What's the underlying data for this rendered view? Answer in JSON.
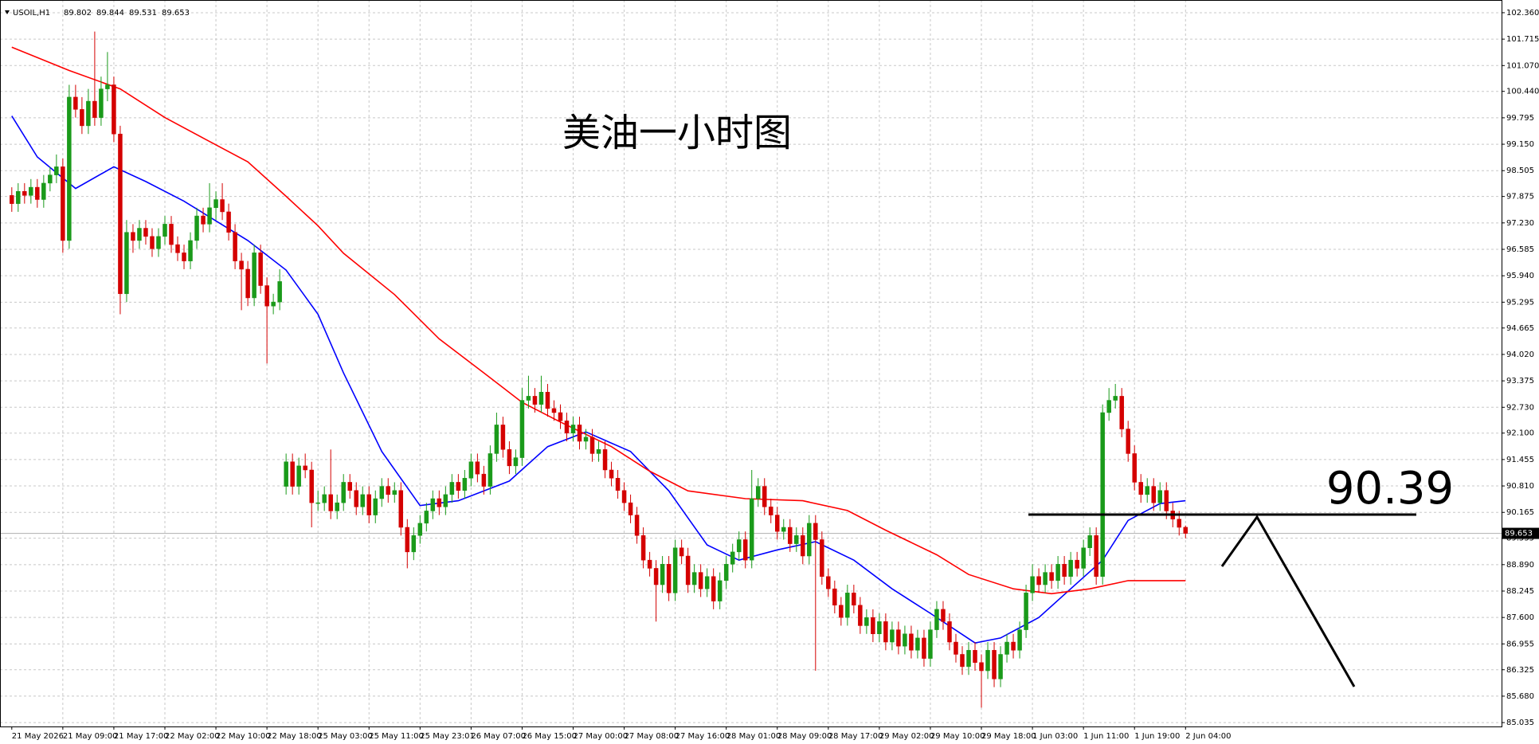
{
  "chart_data": {
    "type": "candlestick",
    "symbol": "USOIL,H1",
    "title": "美油一小时图",
    "annotations": [
      {
        "text": "90.39"
      }
    ],
    "up_color": "#1a9a1a",
    "down_color": "#d40000",
    "grid": true,
    "ylim": [
      84.94,
      102.67
    ],
    "yticks": [
      {
        "value": 102.36,
        "label": "102.360"
      },
      {
        "value": 101.715,
        "label": "101.715"
      },
      {
        "value": 101.07,
        "label": "101.070"
      },
      {
        "value": 100.44,
        "label": "100.440"
      },
      {
        "value": 99.795,
        "label": "99.795"
      },
      {
        "value": 99.15,
        "label": "99.150"
      },
      {
        "value": 98.505,
        "label": "98.505"
      },
      {
        "value": 97.875,
        "label": "97.875"
      },
      {
        "value": 97.23,
        "label": "97.230"
      },
      {
        "value": 96.585,
        "label": "96.585"
      },
      {
        "value": 95.94,
        "label": "95.940"
      },
      {
        "value": 95.295,
        "label": "95.295"
      },
      {
        "value": 94.665,
        "label": "94.665"
      },
      {
        "value": 94.02,
        "label": "94.020"
      },
      {
        "value": 93.375,
        "label": "93.375"
      },
      {
        "value": 92.73,
        "label": "92.730"
      },
      {
        "value": 92.1,
        "label": "92.100"
      },
      {
        "value": 91.455,
        "label": "91.455"
      },
      {
        "value": 90.81,
        "label": "90.810"
      },
      {
        "value": 90.165,
        "label": "90.165"
      },
      {
        "value": 89.535,
        "label": "89.535"
      },
      {
        "value": 88.89,
        "label": "88.890"
      },
      {
        "value": 88.245,
        "label": "88.245"
      },
      {
        "value": 87.6,
        "label": "87.600"
      },
      {
        "value": 86.955,
        "label": "86.955"
      },
      {
        "value": 86.325,
        "label": "86.325"
      },
      {
        "value": 85.68,
        "label": "85.680"
      },
      {
        "value": 85.035,
        "label": "85.035"
      }
    ],
    "xticks": [
      {
        "value": 0,
        "label": "21 May 2026"
      },
      {
        "value": 8,
        "label": "21 May 09:00"
      },
      {
        "value": 16,
        "label": "21 May 17:00"
      },
      {
        "value": 24,
        "label": "22 May 02:00"
      },
      {
        "value": 32,
        "label": "22 May 10:00"
      },
      {
        "value": 40,
        "label": "22 May 18:00"
      },
      {
        "value": 48,
        "label": "25 May 03:00"
      },
      {
        "value": 56,
        "label": "25 May 11:00"
      },
      {
        "value": 64,
        "label": "25 May 23:01"
      },
      {
        "value": 72,
        "label": "26 May 07:00"
      },
      {
        "value": 80,
        "label": "26 May 15:00"
      },
      {
        "value": 88,
        "label": "27 May 00:00"
      },
      {
        "value": 96,
        "label": "27 May 08:00"
      },
      {
        "value": 104,
        "label": "27 May 16:00"
      },
      {
        "value": 112,
        "label": "28 May 01:00"
      },
      {
        "value": 120,
        "label": "28 May 09:00"
      },
      {
        "value": 128,
        "label": "28 May 17:00"
      },
      {
        "value": 136,
        "label": "29 May 02:00"
      },
      {
        "value": 144,
        "label": "29 May 10:00"
      },
      {
        "value": 152,
        "label": "29 May 18:00"
      },
      {
        "value": 160,
        "label": "1 Jun 03:00"
      },
      {
        "value": 168,
        "label": "1 Jun 11:00"
      },
      {
        "value": 176,
        "label": "1 Jun 19:00"
      },
      {
        "value": 184,
        "label": "2 Jun 04:00"
      }
    ],
    "candles": [
      [
        97.9,
        98.1,
        97.5,
        97.7
      ],
      [
        97.7,
        98.2,
        97.5,
        98.0
      ],
      [
        98.0,
        98.2,
        97.7,
        97.9
      ],
      [
        97.9,
        98.3,
        97.7,
        98.1
      ],
      [
        98.1,
        98.3,
        97.6,
        97.8
      ],
      [
        97.8,
        98.4,
        97.6,
        98.2
      ],
      [
        98.2,
        98.6,
        98.0,
        98.4
      ],
      [
        98.4,
        98.9,
        98.2,
        98.6
      ],
      [
        98.6,
        98.8,
        96.5,
        96.8
      ],
      [
        96.8,
        100.6,
        96.6,
        100.3
      ],
      [
        100.3,
        100.6,
        99.8,
        100.0
      ],
      [
        100.0,
        100.3,
        99.4,
        99.6
      ],
      [
        99.6,
        100.5,
        99.4,
        100.2
      ],
      [
        100.2,
        101.9,
        99.6,
        99.8
      ],
      [
        99.8,
        100.8,
        99.6,
        100.5
      ],
      [
        100.5,
        101.4,
        100.2,
        100.6
      ],
      [
        100.6,
        100.8,
        99.2,
        99.4
      ],
      [
        99.4,
        99.6,
        95.0,
        95.5
      ],
      [
        95.5,
        97.3,
        95.3,
        97.0
      ],
      [
        97.0,
        97.2,
        96.5,
        96.8
      ],
      [
        96.8,
        97.3,
        96.6,
        97.1
      ],
      [
        97.1,
        97.3,
        96.7,
        96.9
      ],
      [
        96.9,
        97.1,
        96.4,
        96.6
      ],
      [
        96.6,
        97.1,
        96.4,
        96.9
      ],
      [
        96.9,
        97.4,
        96.7,
        97.2
      ],
      [
        97.2,
        97.4,
        96.5,
        96.7
      ],
      [
        96.7,
        96.9,
        96.3,
        96.5
      ],
      [
        96.5,
        96.7,
        96.1,
        96.3
      ],
      [
        96.3,
        97.0,
        96.1,
        96.8
      ],
      [
        96.8,
        97.6,
        96.6,
        97.4
      ],
      [
        97.4,
        97.6,
        97.0,
        97.2
      ],
      [
        97.2,
        98.2,
        97.0,
        97.6
      ],
      [
        97.6,
        98.0,
        97.3,
        97.8
      ],
      [
        97.8,
        98.2,
        97.3,
        97.5
      ],
      [
        97.5,
        97.7,
        96.8,
        97.0
      ],
      [
        97.0,
        97.2,
        96.1,
        96.3
      ],
      [
        96.3,
        96.5,
        95.1,
        96.1
      ],
      [
        96.1,
        96.3,
        95.2,
        95.4
      ],
      [
        95.4,
        96.7,
        95.2,
        96.5
      ],
      [
        96.5,
        96.7,
        95.5,
        95.7
      ],
      [
        95.7,
        95.9,
        93.8,
        95.2
      ],
      [
        95.2,
        95.5,
        95.0,
        95.3
      ],
      [
        95.3,
        96.1,
        95.1,
        95.8
      ],
      [
        90.8,
        91.6,
        90.6,
        91.4
      ],
      [
        91.4,
        91.6,
        90.6,
        90.8
      ],
      [
        90.8,
        91.5,
        90.6,
        91.3
      ],
      [
        91.3,
        91.6,
        91.0,
        91.2
      ],
      [
        91.2,
        91.4,
        89.8,
        90.4
      ],
      [
        90.4,
        90.7,
        90.2,
        90.4
      ],
      [
        90.4,
        90.8,
        90.2,
        90.6
      ],
      [
        90.6,
        91.7,
        90.0,
        90.2
      ],
      [
        90.2,
        90.6,
        90.0,
        90.4
      ],
      [
        90.4,
        91.1,
        90.2,
        90.9
      ],
      [
        90.9,
        91.1,
        90.5,
        90.7
      ],
      [
        90.7,
        90.9,
        90.1,
        90.3
      ],
      [
        90.3,
        90.8,
        90.1,
        90.6
      ],
      [
        90.6,
        90.8,
        89.9,
        90.1
      ],
      [
        90.1,
        90.7,
        89.9,
        90.5
      ],
      [
        90.5,
        91.0,
        90.3,
        90.8
      ],
      [
        90.8,
        91.0,
        90.4,
        90.6
      ],
      [
        90.6,
        90.9,
        90.4,
        90.7
      ],
      [
        90.7,
        90.9,
        89.6,
        89.8
      ],
      [
        89.8,
        90.0,
        88.8,
        89.2
      ],
      [
        89.2,
        89.8,
        89.0,
        89.6
      ],
      [
        89.6,
        90.1,
        89.4,
        89.9
      ],
      [
        89.9,
        90.4,
        89.7,
        90.2
      ],
      [
        90.2,
        90.7,
        90.0,
        90.5
      ],
      [
        90.5,
        90.7,
        90.1,
        90.3
      ],
      [
        90.3,
        90.8,
        90.1,
        90.6
      ],
      [
        90.6,
        91.1,
        90.4,
        90.9
      ],
      [
        90.9,
        91.1,
        90.5,
        90.7
      ],
      [
        90.7,
        91.2,
        90.5,
        91.0
      ],
      [
        91.0,
        91.6,
        90.8,
        91.4
      ],
      [
        91.4,
        91.6,
        90.9,
        91.1
      ],
      [
        91.1,
        91.3,
        90.6,
        90.8
      ],
      [
        90.8,
        91.8,
        90.6,
        91.6
      ],
      [
        91.6,
        92.6,
        91.4,
        92.3
      ],
      [
        92.3,
        92.5,
        91.5,
        91.7
      ],
      [
        91.7,
        91.9,
        91.1,
        91.3
      ],
      [
        91.3,
        91.7,
        91.1,
        91.5
      ],
      [
        91.5,
        93.2,
        91.3,
        92.9
      ],
      [
        92.9,
        93.5,
        92.7,
        93.0
      ],
      [
        93.0,
        93.2,
        92.6,
        92.8
      ],
      [
        92.8,
        93.5,
        92.6,
        93.1
      ],
      [
        93.1,
        93.3,
        92.5,
        92.7
      ],
      [
        92.7,
        92.9,
        92.4,
        92.6
      ],
      [
        92.6,
        92.8,
        92.2,
        92.4
      ],
      [
        92.4,
        92.6,
        91.9,
        92.1
      ],
      [
        92.1,
        92.5,
        91.9,
        92.3
      ],
      [
        92.3,
        92.5,
        91.7,
        91.9
      ],
      [
        91.9,
        92.2,
        91.7,
        92.0
      ],
      [
        92.0,
        92.2,
        91.4,
        91.6
      ],
      [
        91.6,
        91.9,
        91.4,
        91.7
      ],
      [
        91.7,
        91.9,
        91.0,
        91.2
      ],
      [
        91.2,
        91.4,
        90.8,
        91.0
      ],
      [
        91.0,
        91.2,
        90.5,
        90.7
      ],
      [
        90.7,
        90.9,
        90.2,
        90.4
      ],
      [
        90.4,
        90.6,
        89.9,
        90.1
      ],
      [
        90.1,
        90.3,
        89.4,
        89.6
      ],
      [
        89.6,
        89.8,
        88.8,
        89.0
      ],
      [
        89.0,
        89.2,
        88.6,
        88.8
      ],
      [
        88.8,
        89.0,
        87.5,
        88.4
      ],
      [
        88.4,
        89.1,
        88.2,
        88.9
      ],
      [
        88.9,
        89.1,
        88.0,
        88.2
      ],
      [
        88.2,
        89.5,
        88.0,
        89.3
      ],
      [
        89.3,
        89.5,
        88.9,
        89.1
      ],
      [
        89.1,
        89.3,
        88.2,
        88.4
      ],
      [
        88.4,
        88.9,
        88.2,
        88.7
      ],
      [
        88.7,
        88.9,
        88.1,
        88.3
      ],
      [
        88.3,
        88.8,
        88.1,
        88.6
      ],
      [
        88.6,
        88.8,
        87.8,
        88.0
      ],
      [
        88.0,
        88.7,
        87.8,
        88.5
      ],
      [
        88.5,
        89.1,
        88.3,
        88.9
      ],
      [
        88.9,
        89.4,
        88.7,
        89.2
      ],
      [
        89.2,
        89.7,
        89.0,
        89.5
      ],
      [
        89.5,
        89.7,
        88.8,
        89.0
      ],
      [
        89.0,
        91.2,
        88.8,
        90.5
      ],
      [
        90.5,
        91.0,
        90.3,
        90.8
      ],
      [
        90.8,
        91.0,
        90.1,
        90.3
      ],
      [
        90.3,
        90.5,
        89.9,
        90.1
      ],
      [
        90.1,
        90.3,
        89.5,
        89.7
      ],
      [
        89.7,
        90.0,
        89.5,
        89.8
      ],
      [
        89.8,
        90.0,
        89.2,
        89.4
      ],
      [
        89.4,
        89.8,
        89.2,
        89.6
      ],
      [
        89.6,
        89.8,
        88.9,
        89.1
      ],
      [
        89.1,
        90.1,
        88.9,
        89.9
      ],
      [
        89.9,
        90.1,
        86.3,
        89.5
      ],
      [
        89.5,
        89.7,
        88.4,
        88.6
      ],
      [
        88.6,
        88.8,
        88.1,
        88.3
      ],
      [
        88.3,
        88.5,
        87.7,
        87.9
      ],
      [
        87.9,
        88.1,
        87.4,
        87.6
      ],
      [
        87.6,
        88.4,
        87.4,
        88.2
      ],
      [
        88.2,
        88.4,
        87.7,
        87.9
      ],
      [
        87.9,
        88.1,
        87.2,
        87.4
      ],
      [
        87.4,
        87.8,
        87.2,
        87.6
      ],
      [
        87.6,
        87.8,
        87.0,
        87.2
      ],
      [
        87.2,
        87.7,
        87.0,
        87.5
      ],
      [
        87.5,
        87.7,
        86.8,
        87.0
      ],
      [
        87.0,
        87.5,
        86.8,
        87.3
      ],
      [
        87.3,
        87.5,
        86.7,
        86.9
      ],
      [
        86.9,
        87.4,
        86.7,
        87.2
      ],
      [
        87.2,
        87.4,
        86.6,
        86.8
      ],
      [
        86.8,
        87.3,
        86.6,
        87.1
      ],
      [
        87.1,
        87.3,
        86.4,
        86.6
      ],
      [
        86.6,
        87.5,
        86.4,
        87.3
      ],
      [
        87.3,
        88.0,
        87.1,
        87.8
      ],
      [
        87.8,
        88.0,
        87.3,
        87.5
      ],
      [
        87.5,
        87.7,
        86.8,
        87.0
      ],
      [
        87.0,
        87.2,
        86.5,
        86.7
      ],
      [
        86.7,
        86.9,
        86.2,
        86.4
      ],
      [
        86.4,
        87.0,
        86.2,
        86.8
      ],
      [
        86.8,
        87.0,
        86.3,
        86.5
      ],
      [
        86.5,
        86.7,
        85.4,
        86.3
      ],
      [
        86.3,
        87.0,
        86.1,
        86.8
      ],
      [
        86.8,
        87.0,
        85.9,
        86.1
      ],
      [
        86.1,
        86.9,
        85.9,
        86.7
      ],
      [
        86.7,
        87.2,
        86.5,
        87.0
      ],
      [
        87.0,
        87.2,
        86.6,
        86.8
      ],
      [
        86.8,
        87.5,
        86.6,
        87.3
      ],
      [
        87.3,
        88.4,
        87.1,
        88.2
      ],
      [
        88.2,
        88.9,
        88.0,
        88.6
      ],
      [
        88.6,
        88.8,
        88.2,
        88.4
      ],
      [
        88.4,
        88.9,
        88.2,
        88.7
      ],
      [
        88.7,
        88.9,
        88.3,
        88.5
      ],
      [
        88.5,
        89.1,
        88.3,
        88.9
      ],
      [
        88.9,
        89.1,
        88.4,
        88.6
      ],
      [
        88.6,
        89.2,
        88.4,
        89.0
      ],
      [
        89.0,
        89.2,
        88.6,
        88.8
      ],
      [
        88.8,
        89.5,
        88.6,
        89.3
      ],
      [
        89.3,
        89.8,
        89.1,
        89.6
      ],
      [
        89.6,
        89.8,
        88.4,
        88.6
      ],
      [
        88.6,
        92.8,
        88.4,
        92.6
      ],
      [
        92.6,
        93.2,
        92.4,
        92.9
      ],
      [
        92.9,
        93.3,
        92.7,
        93.0
      ],
      [
        93.0,
        93.2,
        92.0,
        92.2
      ],
      [
        92.2,
        92.4,
        91.4,
        91.6
      ],
      [
        91.6,
        91.8,
        90.7,
        90.9
      ],
      [
        90.9,
        91.1,
        90.4,
        90.6
      ],
      [
        90.6,
        91.0,
        90.4,
        90.8
      ],
      [
        90.8,
        91.0,
        90.2,
        90.4
      ],
      [
        90.4,
        90.9,
        90.2,
        90.7
      ],
      [
        90.7,
        90.9,
        90.0,
        90.2
      ],
      [
        90.2,
        90.4,
        89.8,
        90.0
      ],
      [
        90.0,
        90.2,
        89.6,
        89.8
      ],
      [
        89.802,
        89.844,
        89.531,
        89.653
      ]
    ],
    "series": [
      {
        "color": "#0000ff",
        "x": [
          0,
          4,
          10,
          16,
          21,
          27,
          37,
          43,
          48,
          52,
          58,
          64,
          70,
          78,
          84,
          90,
          97,
          103,
          109,
          114,
          120,
          126,
          132,
          138,
          144,
          151,
          155,
          161,
          166,
          171,
          175,
          180,
          184
        ],
        "values": [
          99.84,
          98.84,
          98.07,
          98.6,
          98.24,
          97.76,
          96.8,
          96.08,
          95.0,
          93.57,
          91.65,
          90.33,
          90.45,
          90.93,
          91.77,
          92.13,
          91.65,
          90.69,
          89.37,
          89.0,
          89.25,
          89.45,
          89.0,
          88.3,
          87.7,
          86.98,
          87.1,
          87.6,
          88.3,
          89.0,
          89.97,
          90.38,
          90.45
        ]
      },
      {
        "color": "#ff0000",
        "x": [
          0,
          9,
          17,
          24,
          30,
          37,
          43,
          48,
          52,
          60,
          67,
          74,
          80,
          86,
          94,
          100,
          106,
          115,
          124,
          131,
          137,
          145,
          150,
          157,
          163,
          169,
          175,
          184
        ],
        "values": [
          101.52,
          100.95,
          100.5,
          99.8,
          99.3,
          98.72,
          97.88,
          97.16,
          96.49,
          95.48,
          94.4,
          93.57,
          92.85,
          92.37,
          91.77,
          91.17,
          90.69,
          90.5,
          90.45,
          90.21,
          89.73,
          89.13,
          88.65,
          88.3,
          88.18,
          88.3,
          88.5,
          88.5
        ]
      }
    ]
  }
}
